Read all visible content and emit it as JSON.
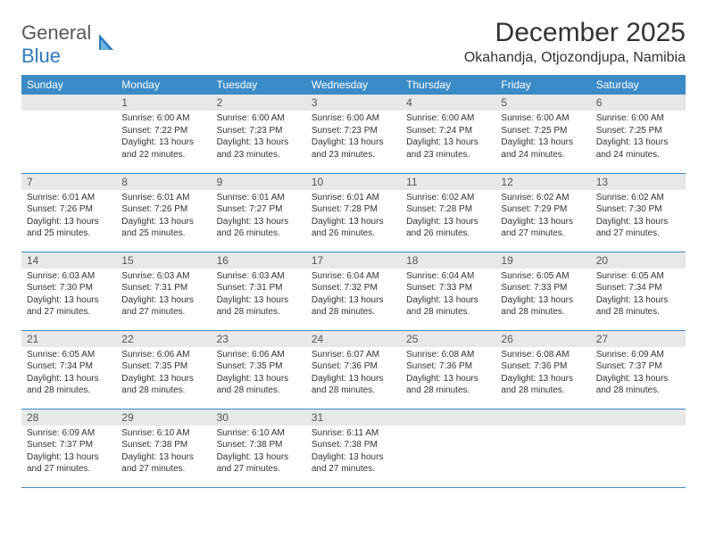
{
  "brand": {
    "part1": "General",
    "part2": "Blue"
  },
  "title": "December 2025",
  "location": "Okahandja, Otjozondjupa, Namibia",
  "header_bg": "#3b8bc7",
  "header_fg": "#ffffff",
  "daynum_bg": "#e8e8e8",
  "border_color": "#3b8bc7",
  "text_color": "#333333",
  "font_family": "Arial",
  "dayname_fontsize": 12,
  "daynum_fontsize": 12,
  "body_fontsize": 10,
  "title_fontsize": 30,
  "location_fontsize": 16,
  "days_of_week": [
    "Sunday",
    "Monday",
    "Tuesday",
    "Wednesday",
    "Thursday",
    "Friday",
    "Saturday"
  ],
  "first_weekday_index": 1,
  "days": [
    {
      "n": 1,
      "sunrise": "6:00 AM",
      "sunset": "7:22 PM",
      "daylight": "13 hours and 22 minutes."
    },
    {
      "n": 2,
      "sunrise": "6:00 AM",
      "sunset": "7:23 PM",
      "daylight": "13 hours and 23 minutes."
    },
    {
      "n": 3,
      "sunrise": "6:00 AM",
      "sunset": "7:23 PM",
      "daylight": "13 hours and 23 minutes."
    },
    {
      "n": 4,
      "sunrise": "6:00 AM",
      "sunset": "7:24 PM",
      "daylight": "13 hours and 23 minutes."
    },
    {
      "n": 5,
      "sunrise": "6:00 AM",
      "sunset": "7:25 PM",
      "daylight": "13 hours and 24 minutes."
    },
    {
      "n": 6,
      "sunrise": "6:00 AM",
      "sunset": "7:25 PM",
      "daylight": "13 hours and 24 minutes."
    },
    {
      "n": 7,
      "sunrise": "6:01 AM",
      "sunset": "7:26 PM",
      "daylight": "13 hours and 25 minutes."
    },
    {
      "n": 8,
      "sunrise": "6:01 AM",
      "sunset": "7:26 PM",
      "daylight": "13 hours and 25 minutes."
    },
    {
      "n": 9,
      "sunrise": "6:01 AM",
      "sunset": "7:27 PM",
      "daylight": "13 hours and 26 minutes."
    },
    {
      "n": 10,
      "sunrise": "6:01 AM",
      "sunset": "7:28 PM",
      "daylight": "13 hours and 26 minutes."
    },
    {
      "n": 11,
      "sunrise": "6:02 AM",
      "sunset": "7:28 PM",
      "daylight": "13 hours and 26 minutes."
    },
    {
      "n": 12,
      "sunrise": "6:02 AM",
      "sunset": "7:29 PM",
      "daylight": "13 hours and 27 minutes."
    },
    {
      "n": 13,
      "sunrise": "6:02 AM",
      "sunset": "7:30 PM",
      "daylight": "13 hours and 27 minutes."
    },
    {
      "n": 14,
      "sunrise": "6:03 AM",
      "sunset": "7:30 PM",
      "daylight": "13 hours and 27 minutes."
    },
    {
      "n": 15,
      "sunrise": "6:03 AM",
      "sunset": "7:31 PM",
      "daylight": "13 hours and 27 minutes."
    },
    {
      "n": 16,
      "sunrise": "6:03 AM",
      "sunset": "7:31 PM",
      "daylight": "13 hours and 28 minutes."
    },
    {
      "n": 17,
      "sunrise": "6:04 AM",
      "sunset": "7:32 PM",
      "daylight": "13 hours and 28 minutes."
    },
    {
      "n": 18,
      "sunrise": "6:04 AM",
      "sunset": "7:33 PM",
      "daylight": "13 hours and 28 minutes."
    },
    {
      "n": 19,
      "sunrise": "6:05 AM",
      "sunset": "7:33 PM",
      "daylight": "13 hours and 28 minutes."
    },
    {
      "n": 20,
      "sunrise": "6:05 AM",
      "sunset": "7:34 PM",
      "daylight": "13 hours and 28 minutes."
    },
    {
      "n": 21,
      "sunrise": "6:05 AM",
      "sunset": "7:34 PM",
      "daylight": "13 hours and 28 minutes."
    },
    {
      "n": 22,
      "sunrise": "6:06 AM",
      "sunset": "7:35 PM",
      "daylight": "13 hours and 28 minutes."
    },
    {
      "n": 23,
      "sunrise": "6:06 AM",
      "sunset": "7:35 PM",
      "daylight": "13 hours and 28 minutes."
    },
    {
      "n": 24,
      "sunrise": "6:07 AM",
      "sunset": "7:36 PM",
      "daylight": "13 hours and 28 minutes."
    },
    {
      "n": 25,
      "sunrise": "6:08 AM",
      "sunset": "7:36 PM",
      "daylight": "13 hours and 28 minutes."
    },
    {
      "n": 26,
      "sunrise": "6:08 AM",
      "sunset": "7:36 PM",
      "daylight": "13 hours and 28 minutes."
    },
    {
      "n": 27,
      "sunrise": "6:09 AM",
      "sunset": "7:37 PM",
      "daylight": "13 hours and 28 minutes."
    },
    {
      "n": 28,
      "sunrise": "6:09 AM",
      "sunset": "7:37 PM",
      "daylight": "13 hours and 27 minutes."
    },
    {
      "n": 29,
      "sunrise": "6:10 AM",
      "sunset": "7:38 PM",
      "daylight": "13 hours and 27 minutes."
    },
    {
      "n": 30,
      "sunrise": "6:10 AM",
      "sunset": "7:38 PM",
      "daylight": "13 hours and 27 minutes."
    },
    {
      "n": 31,
      "sunrise": "6:11 AM",
      "sunset": "7:38 PM",
      "daylight": "13 hours and 27 minutes."
    }
  ],
  "labels": {
    "sunrise": "Sunrise:",
    "sunset": "Sunset:",
    "daylight": "Daylight:"
  }
}
